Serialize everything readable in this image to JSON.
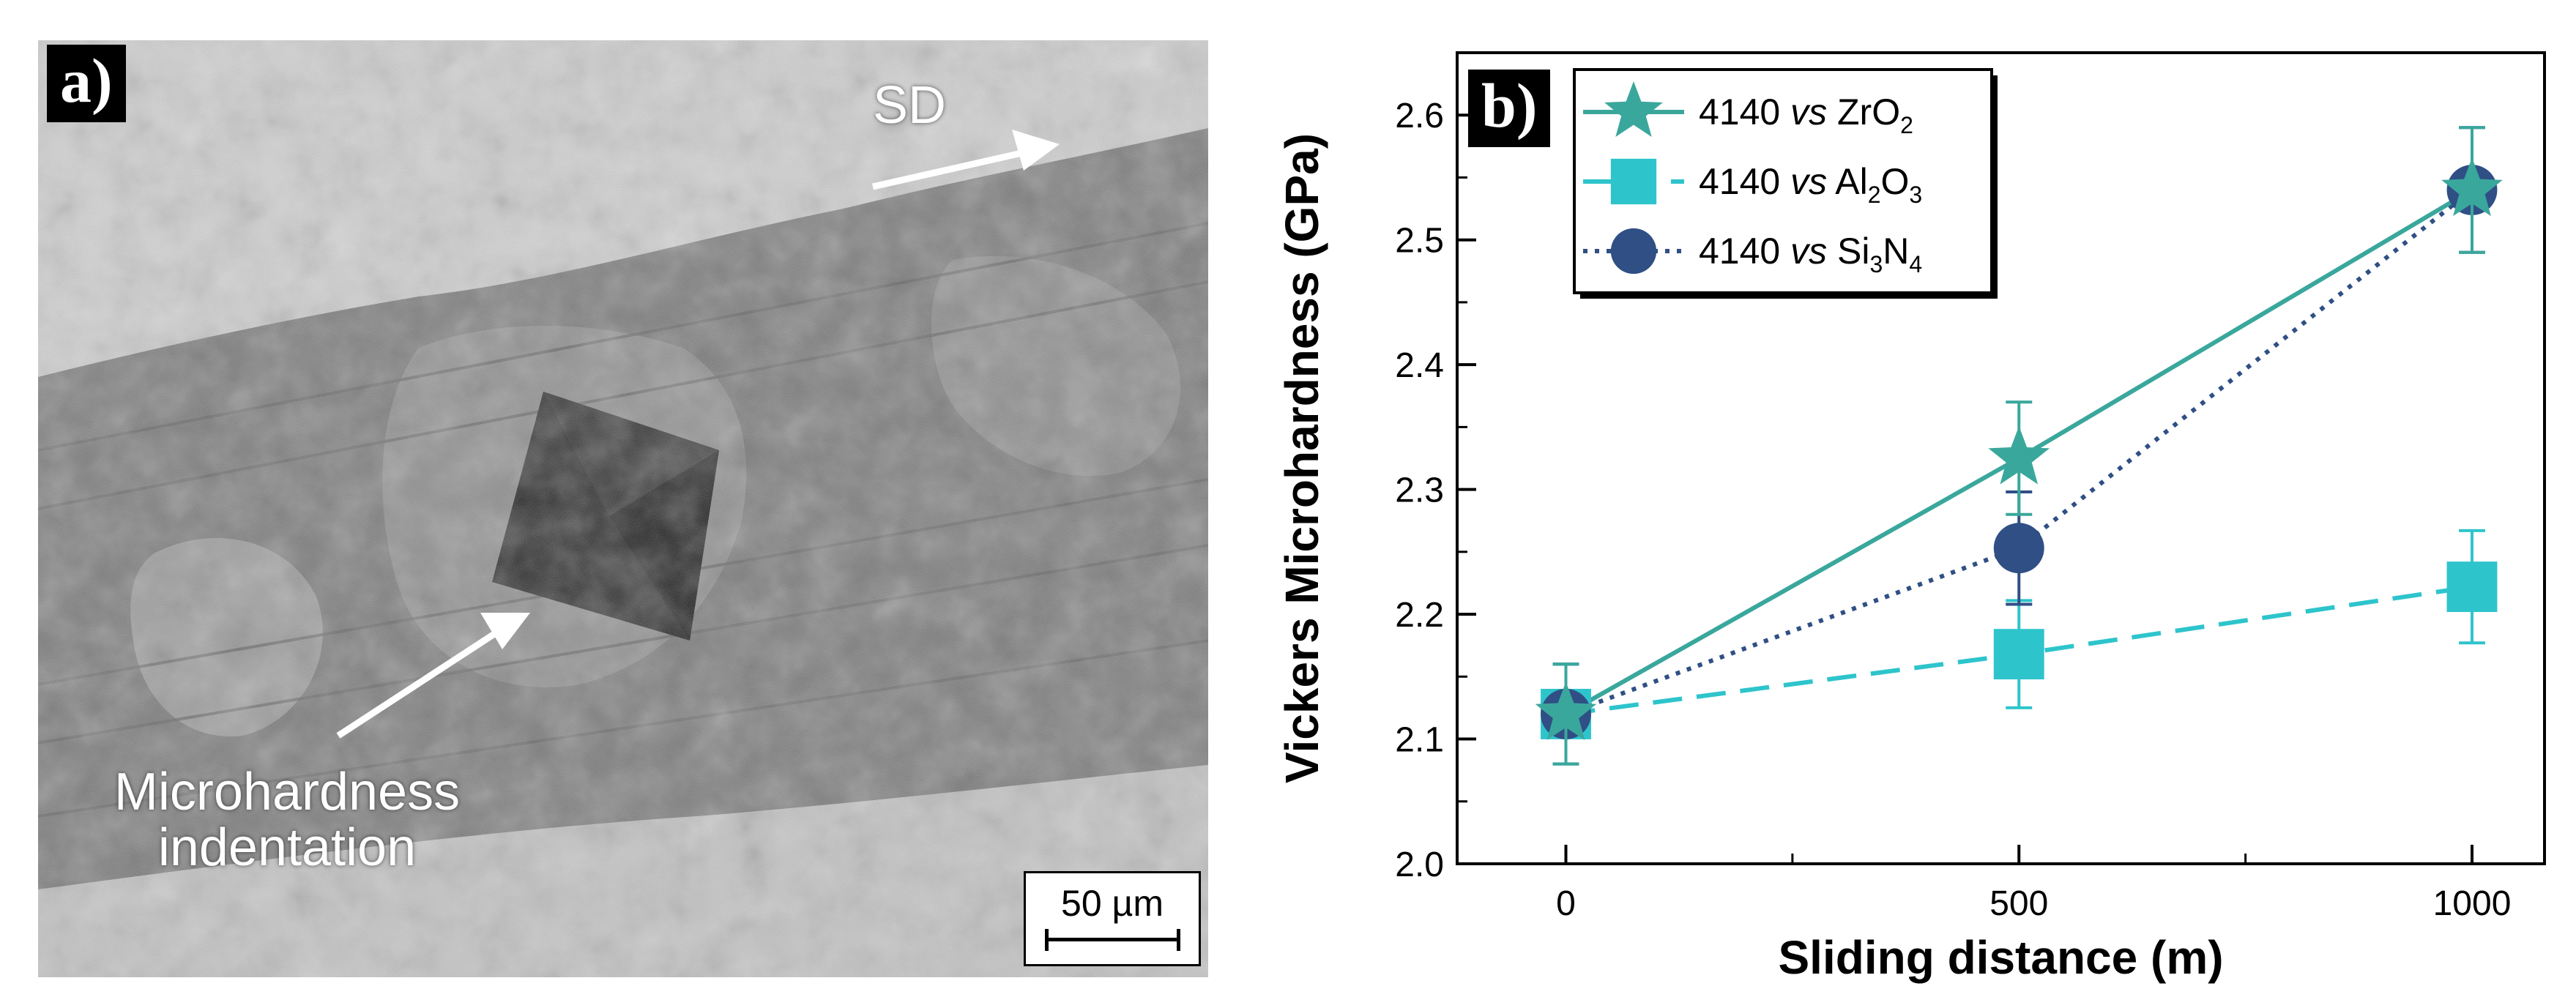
{
  "panel_a": {
    "label": "a)",
    "annotation_sd": "SD",
    "annotation_indentation_line1": "Microhardness",
    "annotation_indentation_line2": "indentation",
    "scale_bar": "50 µm"
  },
  "panel_b": {
    "label": "b)"
  },
  "chart_data": {
    "type": "line",
    "xlabel": "Sliding distance (m)",
    "ylabel": "Vickers Microhardness (GPa)",
    "x": [
      0,
      500,
      1000
    ],
    "xlim": [
      -120,
      1080
    ],
    "ylim": [
      2.0,
      2.65
    ],
    "xticks": [
      "0",
      "500",
      "1000"
    ],
    "yticks": [
      "2.0",
      "2.1",
      "2.2",
      "2.3",
      "2.4",
      "2.5",
      "2.6"
    ],
    "grid": false,
    "legend_position": "top-left",
    "series": [
      {
        "name": "4140 vs ZrO2",
        "legend_parts": [
          "4140 ",
          "vs",
          " ZrO",
          "2"
        ],
        "values": [
          2.12,
          2.325,
          2.54
        ],
        "errors": [
          0.04,
          0.045,
          0.05
        ],
        "color": "#3aa79c",
        "line_style": "solid",
        "marker": "star"
      },
      {
        "name": "4140 vs Al2O3",
        "legend_parts": [
          "4140 ",
          "vs",
          " Al",
          "2",
          "O",
          "3"
        ],
        "values": [
          2.12,
          2.168,
          2.222
        ],
        "errors": [
          0.04,
          0.043,
          0.045
        ],
        "color": "#2ec4cc",
        "line_style": "dashed",
        "marker": "square"
      },
      {
        "name": "4140 vs Si3N4",
        "legend_parts": [
          "4140 ",
          "vs",
          " Si",
          "3",
          "N",
          "4"
        ],
        "values": [
          2.12,
          2.253,
          2.54
        ],
        "errors": [
          0.04,
          0.045,
          0.05
        ],
        "color": "#2f4f85",
        "line_style": "dotted",
        "marker": "circle"
      }
    ]
  }
}
